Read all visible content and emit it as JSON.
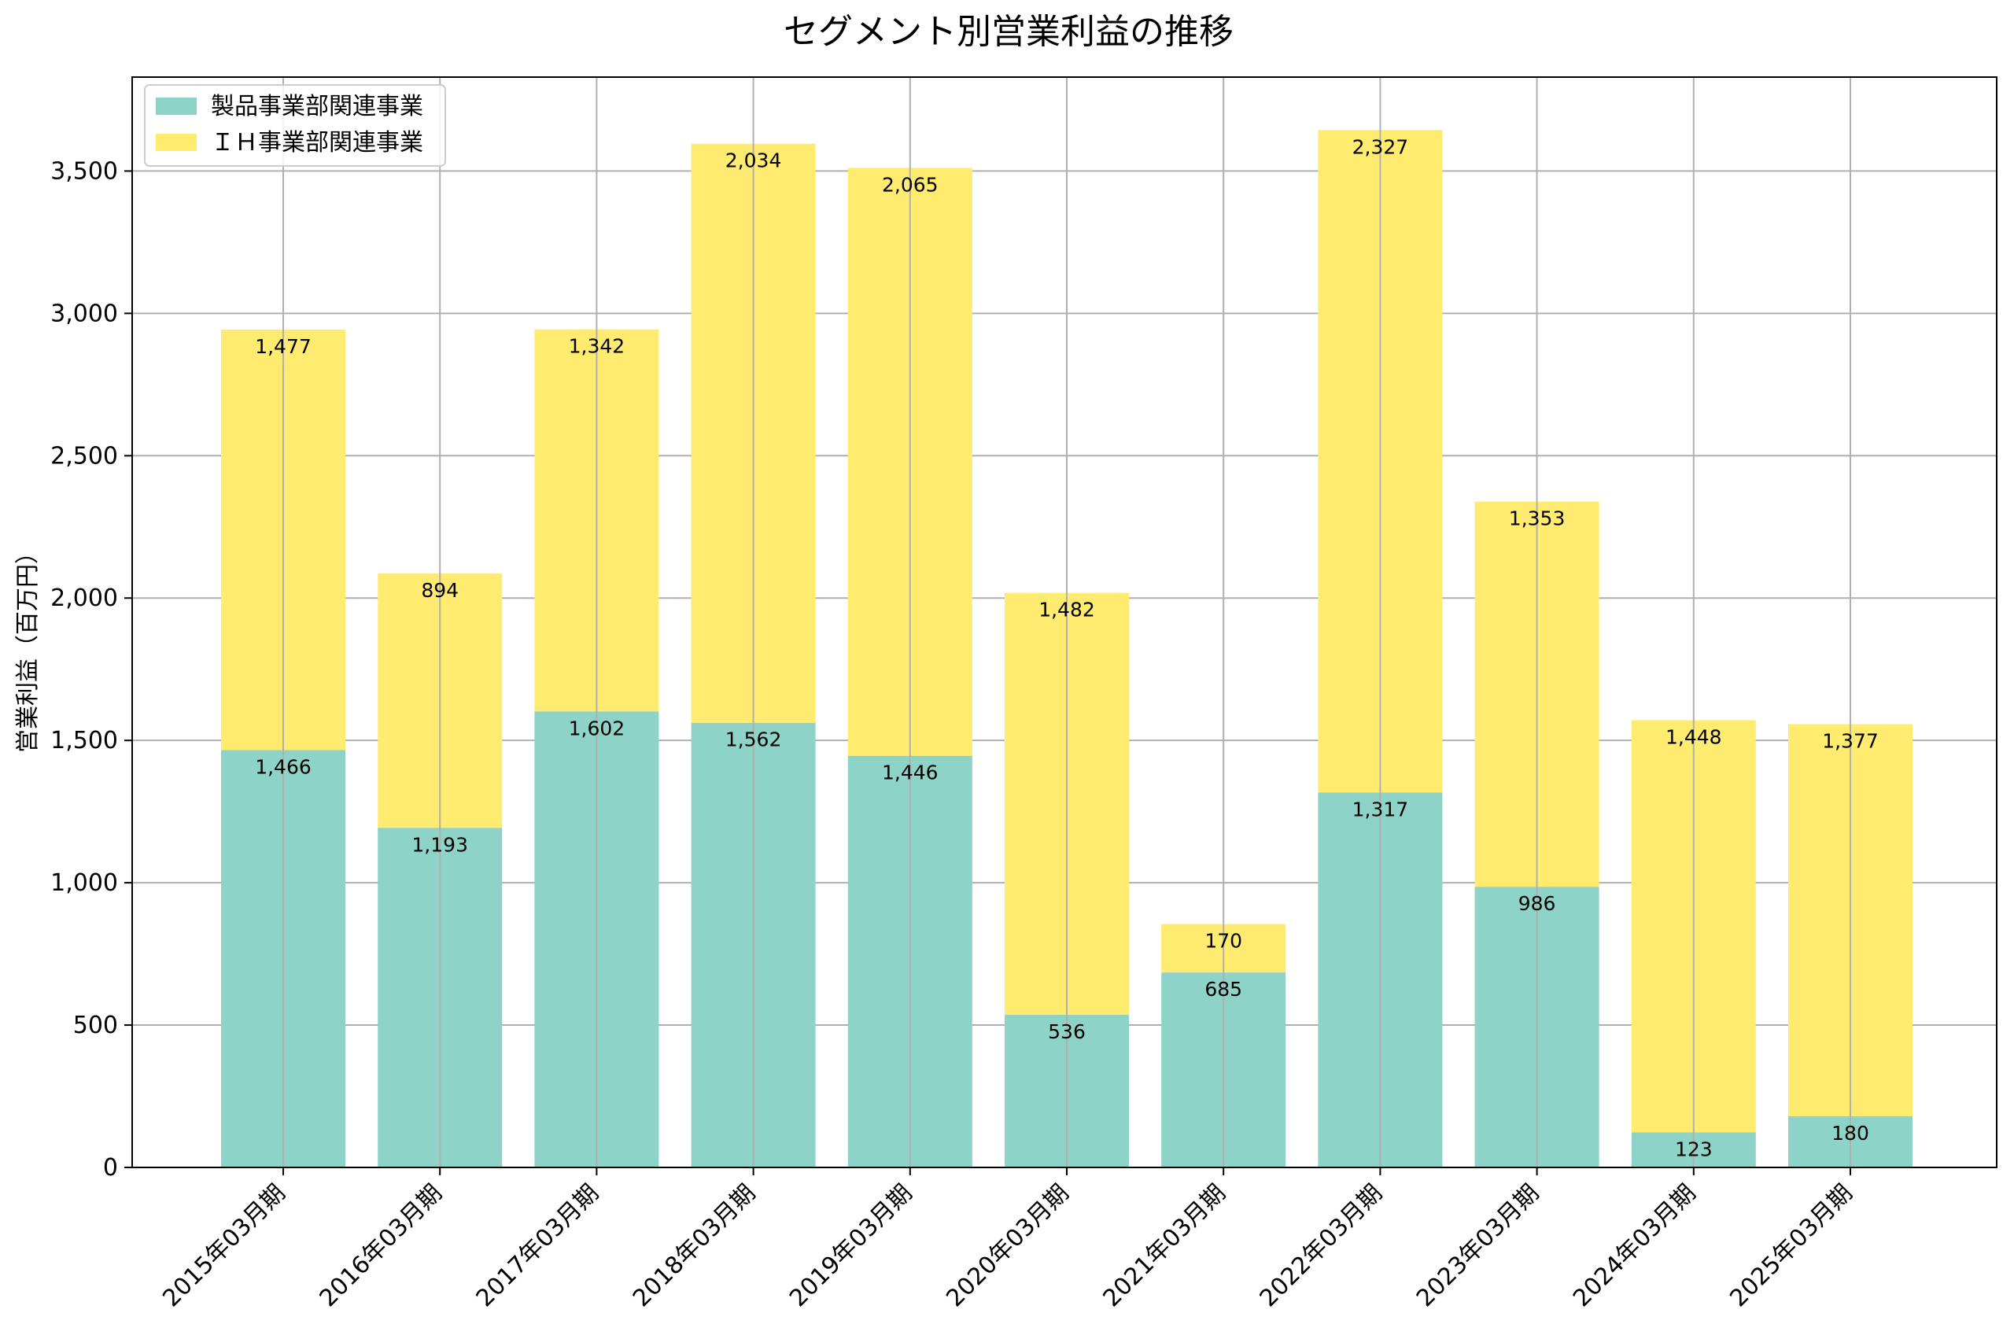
{
  "chart_data": {
    "type": "bar",
    "stacked": true,
    "title": "セグメント別営業利益の推移",
    "xlabel": "",
    "ylabel": "営業利益（百万円）",
    "ylim": [
      0,
      3830
    ],
    "yticks": [
      0,
      500,
      1000,
      1500,
      2000,
      2500,
      3000,
      3500
    ],
    "ytick_labels": [
      "0",
      "500",
      "1,000",
      "1,500",
      "2,000",
      "2,500",
      "3,000",
      "3,500"
    ],
    "grid": true,
    "legend_position": "top-left",
    "categories": [
      "2015年03月期",
      "2016年03月期",
      "2017年03月期",
      "2018年03月期",
      "2019年03月期",
      "2020年03月期",
      "2021年03月期",
      "2022年03月期",
      "2023年03月期",
      "2024年03月期",
      "2025年03月期"
    ],
    "series": [
      {
        "name": "製品事業部関連事業",
        "color": "#8ED3C7",
        "values": [
          1466,
          1193,
          1602,
          1562,
          1446,
          536,
          685,
          1317,
          986,
          123,
          180
        ],
        "labels": [
          "1,466",
          "1,193",
          "1,602",
          "1,562",
          "1,446",
          "536",
          "685",
          "1,317",
          "986",
          "123",
          "180"
        ]
      },
      {
        "name": "ＩＨ事業部関連事業",
        "color": "#FEEB6F",
        "values": [
          1477,
          894,
          1342,
          2034,
          2065,
          1482,
          170,
          2327,
          1353,
          1448,
          1377
        ],
        "labels": [
          "1,477",
          "894",
          "1,342",
          "2,034",
          "2,065",
          "1,482",
          "170",
          "2,327",
          "1,353",
          "1,448",
          "1,377"
        ]
      }
    ]
  }
}
